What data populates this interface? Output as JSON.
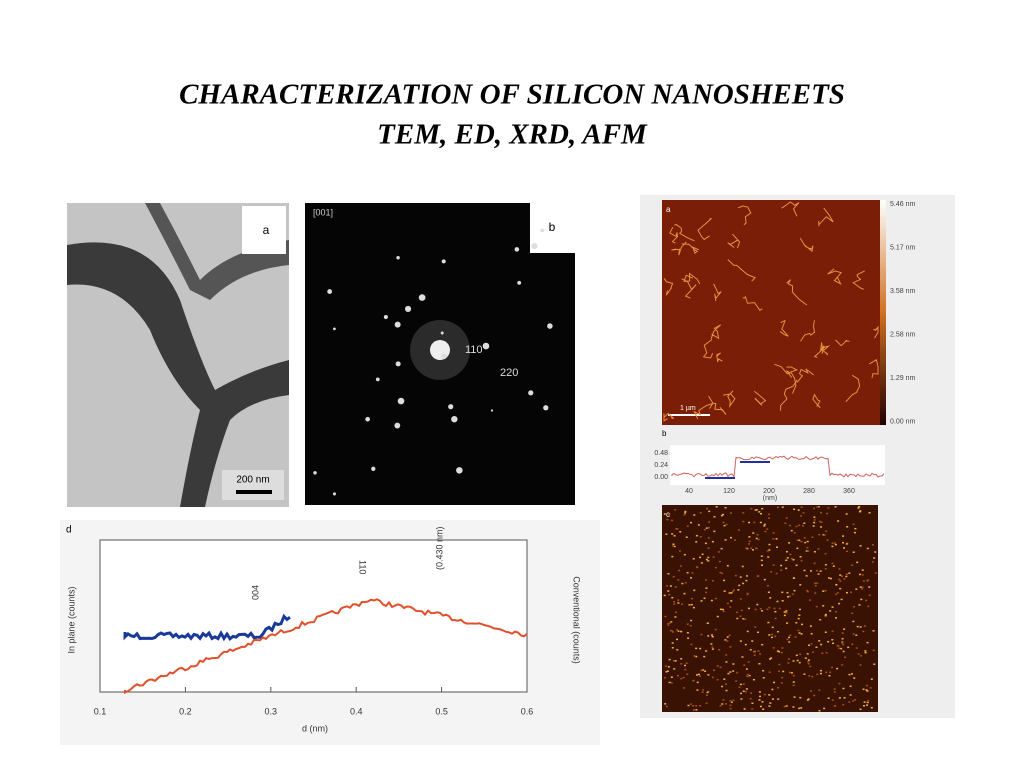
{
  "title": {
    "lines": [
      "CHARACTERIZATION OF SILICON NANOSHEETS",
      "TEM, ED, XRD, AFM"
    ]
  },
  "tem": {
    "label": "a",
    "scale": "200 nm"
  },
  "ed": {
    "label": "b",
    "corner": "[001]",
    "spots": [
      "110",
      "220"
    ]
  },
  "xrd": {
    "label": "d",
    "x_label": "d (nm)",
    "x_ticks": [
      "0.1",
      "0.2",
      "0.3",
      "0.4",
      "0.5",
      "0.6"
    ],
    "y_left_label": "In plane (counts)",
    "y_right_label": "Conventional (counts)",
    "peaks": [
      "110",
      "004",
      "(0.430 nm)"
    ]
  },
  "afm": {
    "label": "a",
    "scale": "1 µm",
    "colorbar": [
      "5.46 nm",
      "5.17 nm",
      "3.58 nm",
      "2.58 nm",
      "1.29 nm",
      "0.00 nm"
    ],
    "profile": {
      "label": "b",
      "y_ticks": [
        "0.48",
        "0.24",
        "0.00"
      ],
      "x_ticks": [
        "40",
        "120",
        "200",
        "280",
        "360"
      ],
      "unit": "(nm)"
    },
    "label_c": "c"
  }
}
